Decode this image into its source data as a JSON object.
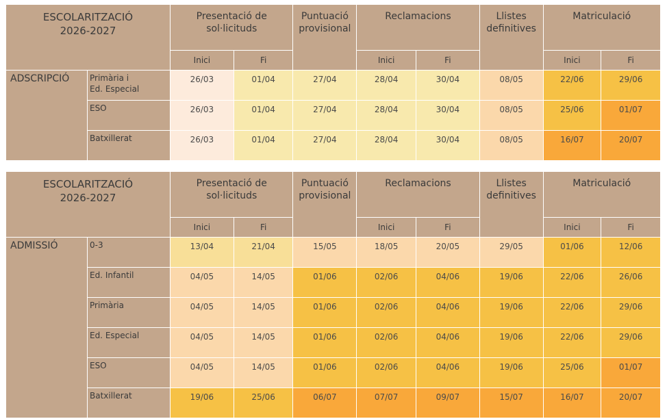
{
  "colors": {
    "header_brown": "#c3a68c",
    "palette": {
      "c1": "#fdebdc",
      "c2": "#f9e5b7",
      "c3": "#f8e9ad",
      "c4": "#fbd8ab",
      "c5": "#f6c145",
      "c6": "#f9a83a",
      "c7": "#f8df98"
    }
  },
  "headers": {
    "title_line1": "ESCOLARITZACIÓ",
    "title_line2": "2026-2027",
    "presentacio_line1": "Presentació de",
    "presentacio_line2": "sol·licituds",
    "puntuacio_line1": "Puntuació",
    "puntuacio_line2": "provisional",
    "reclamacions": "Reclamacions",
    "llistes_line1": "Llistes",
    "llistes_line2": "definitives",
    "matriculacio": "Matriculació",
    "inici": "Inici",
    "fi": "Fi"
  },
  "tables": [
    {
      "group": "ADSCRIPCIÓ",
      "row_height": 44,
      "rows": [
        {
          "level": [
            "Primària i",
            "Ed. Especial"
          ],
          "cells": [
            [
              "26/03",
              "c1"
            ],
            [
              "01/04",
              "c3"
            ],
            [
              "27/04",
              "c3"
            ],
            [
              "28/04",
              "c3"
            ],
            [
              "30/04",
              "c3"
            ],
            [
              "08/05",
              "c4"
            ],
            [
              "22/06",
              "c5"
            ],
            [
              "29/06",
              "c5"
            ]
          ]
        },
        {
          "level": [
            "ESO"
          ],
          "cells": [
            [
              "26/03",
              "c1"
            ],
            [
              "01/04",
              "c3"
            ],
            [
              "27/04",
              "c3"
            ],
            [
              "28/04",
              "c3"
            ],
            [
              "30/04",
              "c3"
            ],
            [
              "08/05",
              "c4"
            ],
            [
              "25/06",
              "c5"
            ],
            [
              "01/07",
              "c6"
            ]
          ]
        },
        {
          "level": [
            "Batxillerat"
          ],
          "cells": [
            [
              "26/03",
              "c1"
            ],
            [
              "01/04",
              "c3"
            ],
            [
              "27/04",
              "c3"
            ],
            [
              "28/04",
              "c3"
            ],
            [
              "30/04",
              "c3"
            ],
            [
              "08/05",
              "c4"
            ],
            [
              "16/07",
              "c6"
            ],
            [
              "20/07",
              "c6"
            ]
          ]
        }
      ]
    },
    {
      "group": "ADMISSIÓ",
      "row_height": 44,
      "rows": [
        {
          "level": [
            "0-3"
          ],
          "cells": [
            [
              "13/04",
              "c7"
            ],
            [
              "21/04",
              "c7"
            ],
            [
              "15/05",
              "c4"
            ],
            [
              "18/05",
              "c4"
            ],
            [
              "20/05",
              "c4"
            ],
            [
              "29/05",
              "c4"
            ],
            [
              "01/06",
              "c5"
            ],
            [
              "12/06",
              "c5"
            ]
          ]
        },
        {
          "level": [
            "Ed. Infantil"
          ],
          "cells": [
            [
              "04/05",
              "c4"
            ],
            [
              "14/05",
              "c4"
            ],
            [
              "01/06",
              "c5"
            ],
            [
              "02/06",
              "c5"
            ],
            [
              "04/06",
              "c5"
            ],
            [
              "19/06",
              "c5"
            ],
            [
              "22/06",
              "c5"
            ],
            [
              "26/06",
              "c5"
            ]
          ]
        },
        {
          "level": [
            "Primària"
          ],
          "cells": [
            [
              "04/05",
              "c4"
            ],
            [
              "14/05",
              "c4"
            ],
            [
              "01/06",
              "c5"
            ],
            [
              "02/06",
              "c5"
            ],
            [
              "04/06",
              "c5"
            ],
            [
              "19/06",
              "c5"
            ],
            [
              "22/06",
              "c5"
            ],
            [
              "29/06",
              "c5"
            ]
          ]
        },
        {
          "level": [
            "Ed. Especial"
          ],
          "cells": [
            [
              "04/05",
              "c4"
            ],
            [
              "14/05",
              "c4"
            ],
            [
              "01/06",
              "c5"
            ],
            [
              "02/06",
              "c5"
            ],
            [
              "04/06",
              "c5"
            ],
            [
              "19/06",
              "c5"
            ],
            [
              "22/06",
              "c5"
            ],
            [
              "29/06",
              "c5"
            ]
          ]
        },
        {
          "level": [
            "ESO"
          ],
          "cells": [
            [
              "04/05",
              "c4"
            ],
            [
              "14/05",
              "c4"
            ],
            [
              "01/06",
              "c5"
            ],
            [
              "02/06",
              "c5"
            ],
            [
              "04/06",
              "c5"
            ],
            [
              "19/06",
              "c5"
            ],
            [
              "25/06",
              "c5"
            ],
            [
              "01/07",
              "c6"
            ]
          ]
        },
        {
          "level": [
            "Batxillerat"
          ],
          "cells": [
            [
              "19/06",
              "c5"
            ],
            [
              "25/06",
              "c5"
            ],
            [
              "06/07",
              "c6"
            ],
            [
              "07/07",
              "c6"
            ],
            [
              "09/07",
              "c6"
            ],
            [
              "15/07",
              "c6"
            ],
            [
              "16/07",
              "c6"
            ],
            [
              "20/07",
              "c6"
            ]
          ]
        }
      ]
    }
  ]
}
